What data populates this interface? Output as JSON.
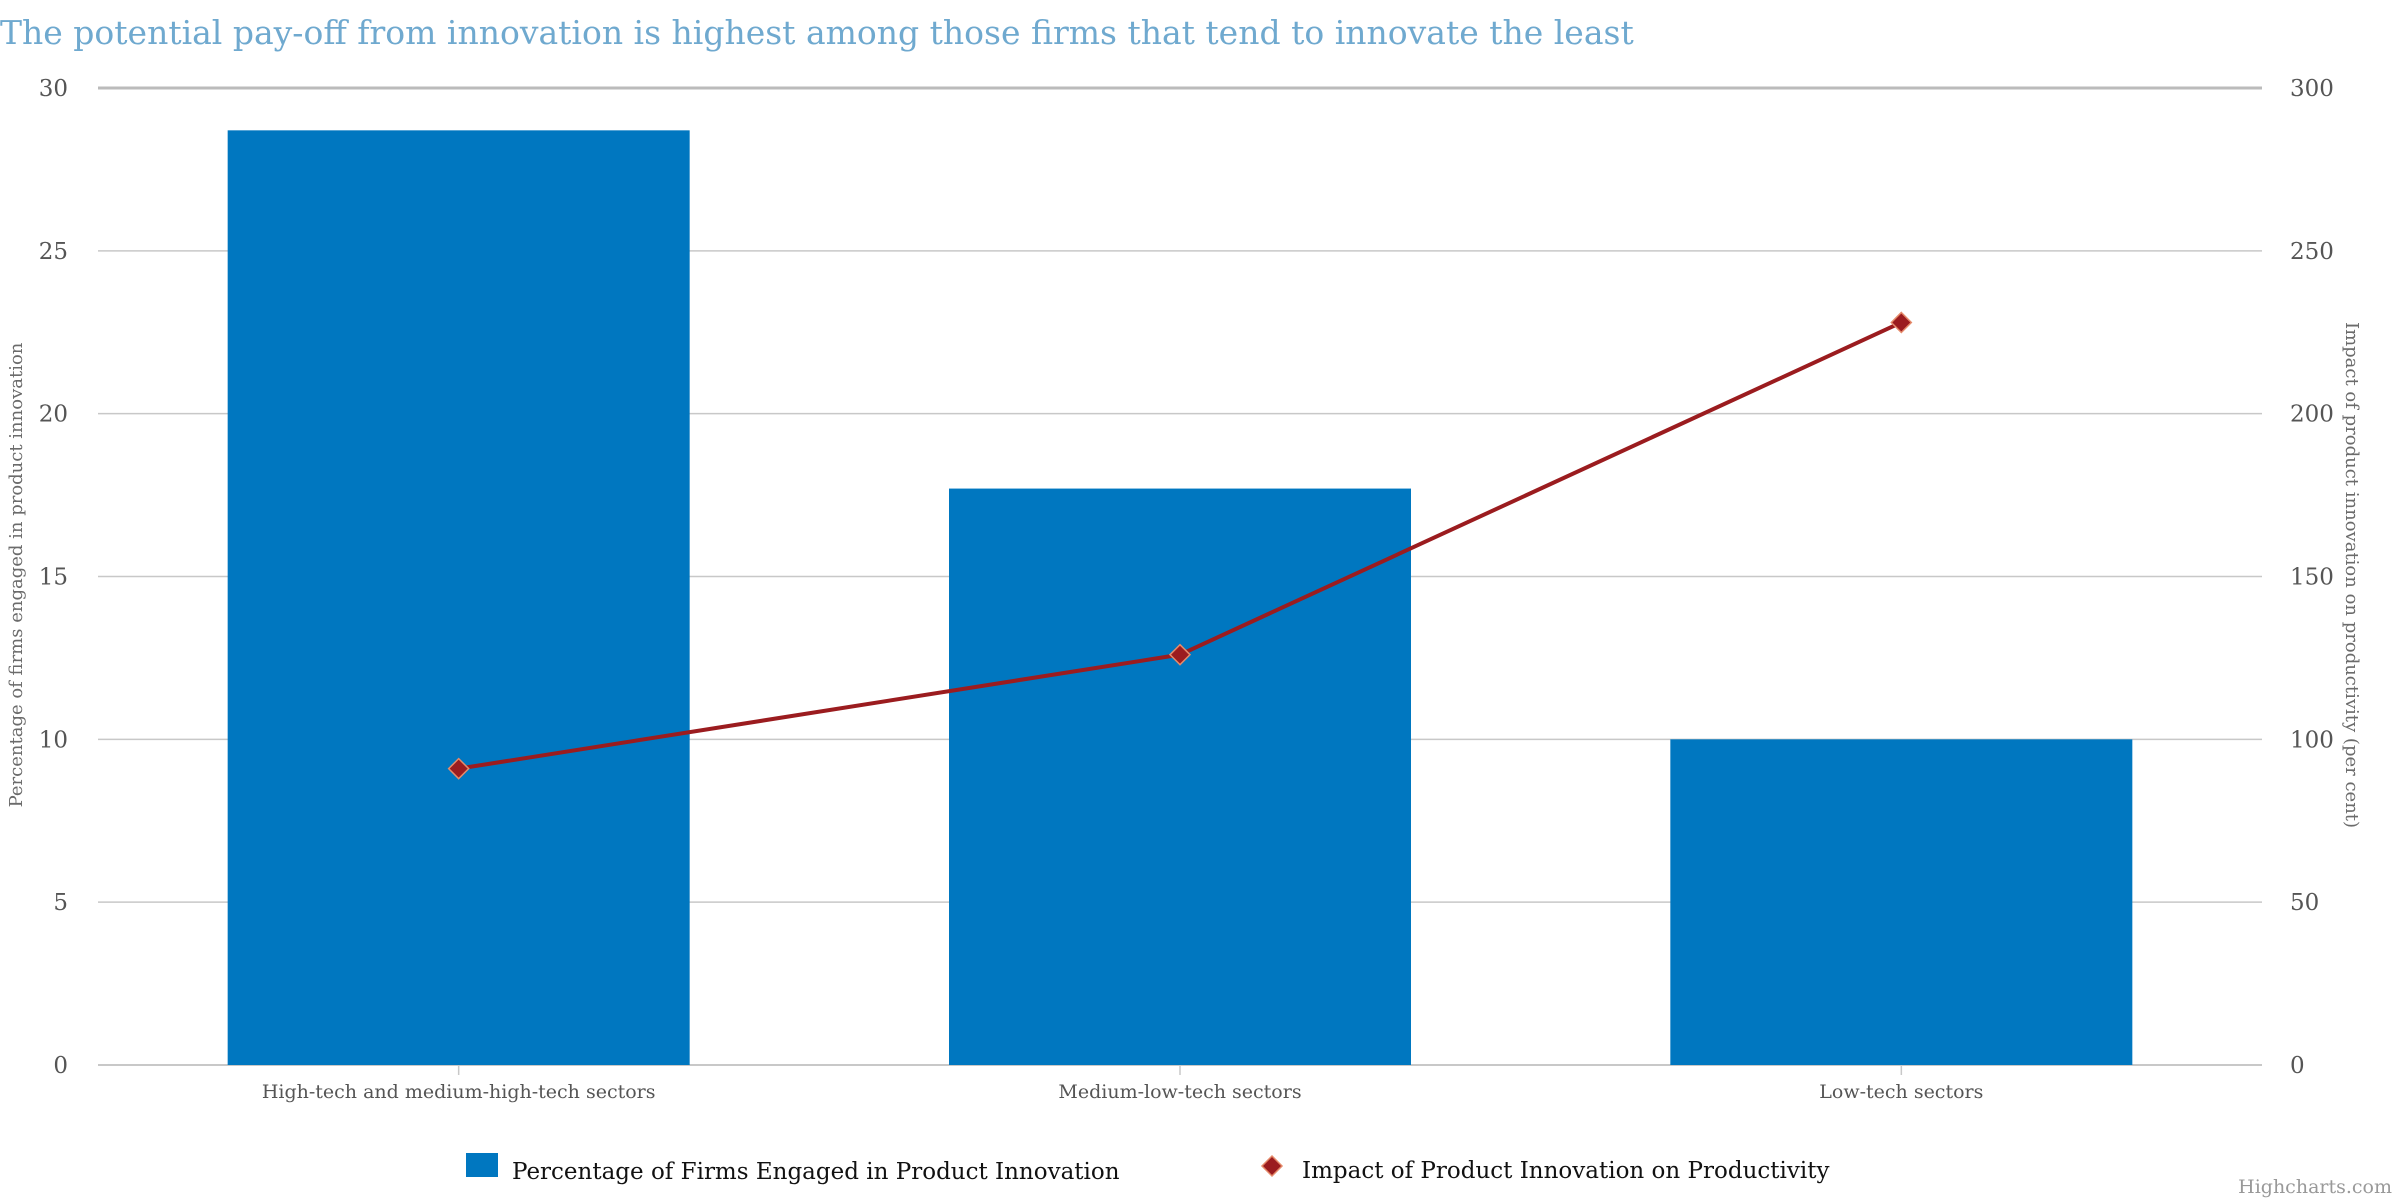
{
  "chart_data": {
    "type": "bar",
    "title": "The potential pay-off from innovation is highest among those firms that tend to innovate the least",
    "categories": [
      "High-tech and medium-high-tech sectors",
      "Medium-low-tech sectors",
      "Low-tech sectors"
    ],
    "series": [
      {
        "name": "Percentage of Firms Engaged in Product Innovation",
        "type": "bar",
        "axis": "left",
        "color": "#0077c0",
        "values": [
          28.7,
          17.7,
          10.0
        ]
      },
      {
        "name": "Impact of Product Innovation on Productivity",
        "type": "line",
        "axis": "right",
        "color": "#9b1c1f",
        "marker": "diamond",
        "values": [
          91,
          126,
          228
        ]
      }
    ],
    "y_left": {
      "label": "Percentage of firms engaged in product innovation",
      "range": [
        0,
        30
      ],
      "ticks": [
        "0",
        "5",
        "10",
        "15",
        "20",
        "25",
        "30"
      ]
    },
    "y_right": {
      "label": "Impact of product innovation on productivity (per cent)",
      "range": [
        0,
        300
      ],
      "ticks": [
        "0",
        "50",
        "100",
        "150",
        "200",
        "250",
        "300"
      ]
    },
    "grid": true,
    "legend_position": "bottom-center",
    "credits": "Highcharts.com"
  }
}
